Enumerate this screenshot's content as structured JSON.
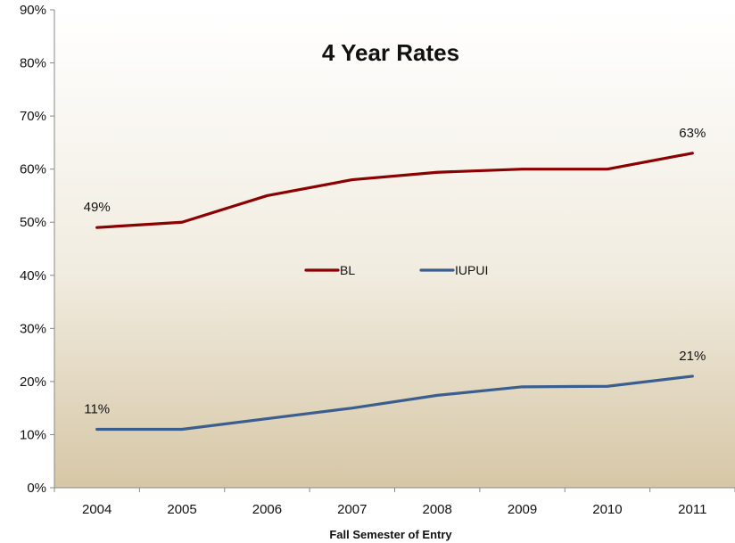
{
  "chart_data": {
    "type": "line",
    "title": "4 Year Rates",
    "xlabel": "Fall Semester of Entry",
    "ylabel": "",
    "categories": [
      "2004",
      "2005",
      "2006",
      "2007",
      "2008",
      "2009",
      "2010",
      "2011"
    ],
    "y_ticks": [
      "0%",
      "10%",
      "20%",
      "30%",
      "40%",
      "50%",
      "60%",
      "70%",
      "80%",
      "90%"
    ],
    "ylim": [
      0,
      90
    ],
    "grid": false,
    "legend_position": "center",
    "series": [
      {
        "name": "BL",
        "color": "#8B0000",
        "values": [
          49,
          50,
          55,
          58,
          59.4,
          60,
          60,
          63
        ]
      },
      {
        "name": "IUPUI",
        "color": "#3A5F8F",
        "values": [
          11,
          11,
          13,
          15,
          17.4,
          19,
          19.1,
          21
        ]
      }
    ],
    "annotations": [
      {
        "series": 0,
        "index": 0,
        "text": "49%"
      },
      {
        "series": 0,
        "index": 7,
        "text": "63%"
      },
      {
        "series": 1,
        "index": 0,
        "text": "11%"
      },
      {
        "series": 1,
        "index": 7,
        "text": "21%"
      }
    ]
  }
}
